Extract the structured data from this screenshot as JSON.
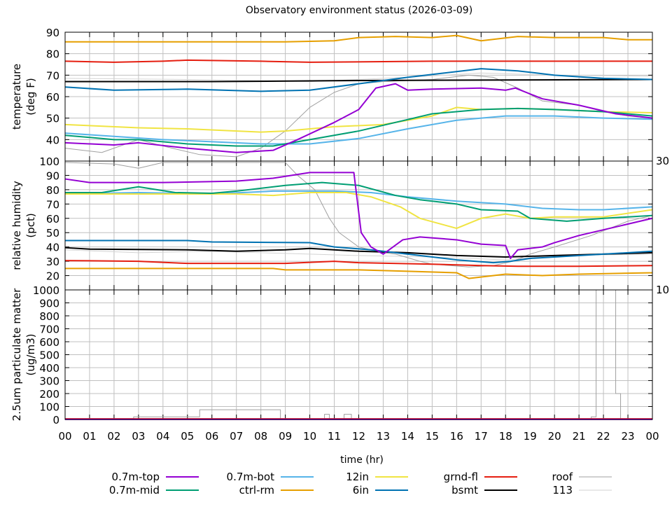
{
  "title": "Observatory environment status (2026-03-09)",
  "xlabel": "time (hr)",
  "x_tick_labels": [
    "00",
    "01",
    "02",
    "03",
    "04",
    "05",
    "06",
    "07",
    "08",
    "09",
    "10",
    "11",
    "12",
    "13",
    "14",
    "15",
    "16",
    "17",
    "18",
    "19",
    "20",
    "21",
    "22",
    "23",
    "00"
  ],
  "legend": [
    {
      "name": "0.7m-top",
      "color": "#9400d3"
    },
    {
      "name": "0.7m-bot",
      "color": "#56b4e9"
    },
    {
      "name": "12in",
      "color": "#f0e442"
    },
    {
      "name": "grnd-fl",
      "color": "#e51e10"
    },
    {
      "name": "roof",
      "color": "#a0a0a0"
    },
    {
      "name": "0.7m-mid",
      "color": "#009e73"
    },
    {
      "name": "ctrl-rm",
      "color": "#e69f00"
    },
    {
      "name": "6in",
      "color": "#0072b2"
    },
    {
      "name": "bsmt",
      "color": "#000000"
    },
    {
      "name": "113",
      "color": "#d3d3d3"
    }
  ],
  "chart_data": [
    {
      "type": "line",
      "ylabel": "temperature",
      "ylabel2": "(deg F)",
      "ylim": [
        30,
        90
      ],
      "yticks": [
        30,
        40,
        50,
        60,
        70,
        80,
        90
      ],
      "xlim": [
        0,
        24
      ],
      "grid": true,
      "series": [
        {
          "name": "113",
          "x": [
            0,
            5,
            10,
            14,
            17,
            20,
            24
          ],
          "y": [
            68.5,
            68,
            67,
            69,
            71,
            70,
            69.5
          ]
        },
        {
          "name": "roof",
          "x": [
            0,
            1.5,
            3,
            4,
            5.5,
            7,
            8,
            9,
            10,
            11,
            12,
            13,
            15,
            16.5,
            17.5,
            18.5,
            19.5,
            21,
            22,
            23,
            24
          ],
          "y": [
            36,
            34,
            40,
            37,
            33,
            32,
            36,
            44,
            55,
            62,
            66,
            67,
            68,
            70,
            69,
            64,
            58,
            56,
            53,
            51,
            50
          ]
        },
        {
          "name": "ctrl-rm",
          "x": [
            0,
            9,
            11,
            12,
            13.5,
            15,
            16,
            17,
            18.5,
            20,
            22,
            23,
            24
          ],
          "y": [
            85.5,
            85.5,
            86,
            87.5,
            88,
            87.5,
            88.5,
            86,
            88,
            87.5,
            87.5,
            86.5,
            86.5
          ]
        },
        {
          "name": "grnd-fl",
          "x": [
            0,
            2,
            4,
            5,
            8,
            10,
            15,
            24
          ],
          "y": [
            76.5,
            76,
            76.5,
            77,
            76.5,
            76,
            76.5,
            76.5
          ]
        },
        {
          "name": "bsmt",
          "x": [
            0,
            6,
            12,
            24
          ],
          "y": [
            67,
            67,
            67.5,
            68
          ]
        },
        {
          "name": "6in",
          "x": [
            0,
            2,
            5,
            8,
            10,
            12,
            14,
            15.5,
            17,
            18.5,
            20,
            22,
            24
          ],
          "y": [
            64.5,
            63,
            63.5,
            62.5,
            63,
            66,
            69,
            71,
            73,
            72,
            70,
            68.5,
            68
          ]
        },
        {
          "name": "0.7m-bot",
          "x": [
            0,
            2,
            4,
            6,
            8,
            10,
            12,
            14,
            16,
            18,
            20,
            22,
            24
          ],
          "y": [
            43,
            41.5,
            40,
            39,
            38,
            38,
            40.5,
            45,
            49,
            51,
            51,
            50,
            49.5
          ]
        },
        {
          "name": "12in",
          "x": [
            0,
            3,
            5,
            8,
            9,
            11,
            13,
            15,
            16,
            17,
            18.5,
            20,
            22,
            24
          ],
          "y": [
            47,
            45.5,
            45,
            43.5,
            44,
            46,
            47,
            51,
            55,
            54,
            54.5,
            54,
            53,
            52.5
          ]
        },
        {
          "name": "0.7m-mid",
          "x": [
            0,
            2,
            3,
            5,
            7,
            8.5,
            10,
            12,
            13.5,
            15,
            17,
            18.5,
            20,
            22,
            24
          ],
          "y": [
            42,
            40,
            40,
            38,
            37,
            37,
            40,
            44,
            48,
            52,
            54,
            54.5,
            54,
            53,
            51
          ]
        },
        {
          "name": "0.7m-top",
          "x": [
            0,
            2,
            3,
            5,
            7,
            8.5,
            9.5,
            11,
            12,
            12.7,
            13.5,
            14,
            15,
            17,
            18,
            18.4,
            19.5,
            21,
            22.5,
            24
          ],
          "y": [
            38.5,
            37.5,
            38.5,
            36,
            34,
            35,
            40,
            48,
            54,
            64,
            66,
            63,
            63.5,
            64,
            63,
            64,
            59,
            56,
            52,
            50
          ]
        }
      ]
    },
    {
      "type": "line",
      "ylabel": "relative humidity",
      "ylabel2": "(pct)",
      "ylim": [
        10,
        100
      ],
      "yticks": [
        10,
        20,
        30,
        40,
        50,
        60,
        70,
        80,
        90,
        100
      ],
      "xlim": [
        0,
        24
      ],
      "grid": true,
      "series": [
        {
          "name": "113",
          "x": [
            0,
            3,
            6,
            10,
            12,
            15,
            18,
            20,
            24
          ],
          "y": [
            38,
            36,
            37,
            35,
            34,
            33,
            31,
            34,
            35
          ]
        },
        {
          "name": "roof",
          "x": [
            0,
            2,
            3,
            4,
            8,
            9,
            9.5,
            10.2,
            10.8,
            11.2,
            12,
            13,
            13.5,
            14.5,
            15,
            16.5,
            17.5,
            18.3,
            19,
            20,
            21.5,
            23,
            24
          ],
          "y": [
            99,
            98,
            95,
            99,
            99,
            99,
            90,
            80,
            60,
            50,
            40,
            36,
            35,
            30,
            28,
            26,
            27,
            30,
            35,
            40,
            48,
            58,
            62
          ]
        },
        {
          "name": "ctrl-rm",
          "x": [
            0,
            8.5,
            9,
            12,
            14,
            16,
            16.5,
            18,
            19.5,
            21,
            24
          ],
          "y": [
            25,
            25,
            24,
            24,
            23,
            22,
            18,
            21,
            20,
            21,
            22
          ]
        },
        {
          "name": "grnd-fl",
          "x": [
            0,
            3,
            5,
            9,
            11,
            12,
            15,
            17,
            18.5,
            21,
            24
          ],
          "y": [
            30.5,
            30,
            28.5,
            28.5,
            30,
            29,
            28,
            27,
            26.5,
            26.5,
            27
          ]
        },
        {
          "name": "bsmt",
          "x": [
            0,
            1,
            5,
            7,
            9,
            10,
            12,
            14,
            16,
            18,
            20,
            22,
            24
          ],
          "y": [
            39.5,
            38.5,
            38,
            37,
            38,
            39,
            37,
            36,
            34,
            33,
            34,
            35,
            36
          ]
        },
        {
          "name": "6in",
          "x": [
            0,
            5,
            6,
            10,
            11,
            12.5,
            14,
            16,
            17.5,
            18.2,
            19,
            22,
            24
          ],
          "y": [
            44.5,
            44.5,
            43.5,
            43,
            40,
            38,
            35,
            31,
            29,
            30,
            32,
            35,
            37
          ]
        },
        {
          "name": "0.7m-bot",
          "x": [
            0,
            3,
            6,
            8.5,
            11,
            12.5,
            14,
            16,
            18,
            19.5,
            21,
            22,
            24
          ],
          "y": [
            77,
            78,
            77,
            79,
            79,
            78,
            75,
            72,
            70,
            67,
            66,
            66,
            68
          ]
        },
        {
          "name": "12in",
          "x": [
            0,
            7,
            8.5,
            10,
            11.5,
            12.5,
            13.7,
            14.5,
            16,
            17,
            18,
            19,
            20,
            22,
            24
          ],
          "y": [
            77,
            77,
            76,
            78,
            78,
            75,
            68,
            60,
            53,
            60,
            63,
            60,
            61,
            61,
            66
          ]
        },
        {
          "name": "0.7m-mid",
          "x": [
            0,
            1.5,
            3,
            4.5,
            6,
            7,
            9,
            10.5,
            12,
            13.5,
            14.5,
            16,
            17,
            18.5,
            19,
            20.5,
            22,
            24
          ],
          "y": [
            78,
            78,
            82,
            78,
            77.5,
            79,
            83,
            85,
            83,
            76,
            73,
            70,
            66,
            65,
            60,
            58,
            60,
            62
          ]
        },
        {
          "name": "0.7m-top",
          "x": [
            0,
            1,
            4,
            7,
            8.5,
            10,
            11.8,
            12.1,
            12.5,
            13,
            13.8,
            14.5,
            16,
            17,
            18,
            18.2,
            18.5,
            19.5,
            20,
            21,
            22.5,
            24
          ],
          "y": [
            87.5,
            85,
            85,
            86,
            88,
            92,
            92,
            50,
            40,
            35,
            45,
            47,
            45,
            42,
            41,
            32,
            38,
            40,
            43,
            48,
            54,
            60
          ]
        }
      ]
    },
    {
      "type": "line",
      "ylabel": "2.5um particulate matter",
      "ylabel2": "(ug/m3)",
      "ylim": [
        0,
        1000
      ],
      "yticks": [
        0,
        100,
        200,
        300,
        400,
        500,
        600,
        700,
        800,
        900,
        1000
      ],
      "xlim": [
        0,
        24
      ],
      "grid": true,
      "series": [
        {
          "name": "roof",
          "step": true,
          "x": [
            0,
            2.8,
            5.5,
            8.8,
            10.6,
            10.8,
            11.4,
            11.7,
            21.5,
            21.7,
            22.5,
            22.7,
            24
          ],
          "y": [
            0,
            20,
            75,
            0,
            40,
            0,
            40,
            0,
            20,
            1000,
            200,
            0,
            0
          ]
        },
        {
          "name": "grnd-fl",
          "x": [
            0,
            24
          ],
          "y": [
            5,
            5
          ]
        },
        {
          "name": "0.7m-top",
          "x": [
            0,
            24
          ],
          "y": [
            1,
            1
          ]
        }
      ]
    }
  ]
}
